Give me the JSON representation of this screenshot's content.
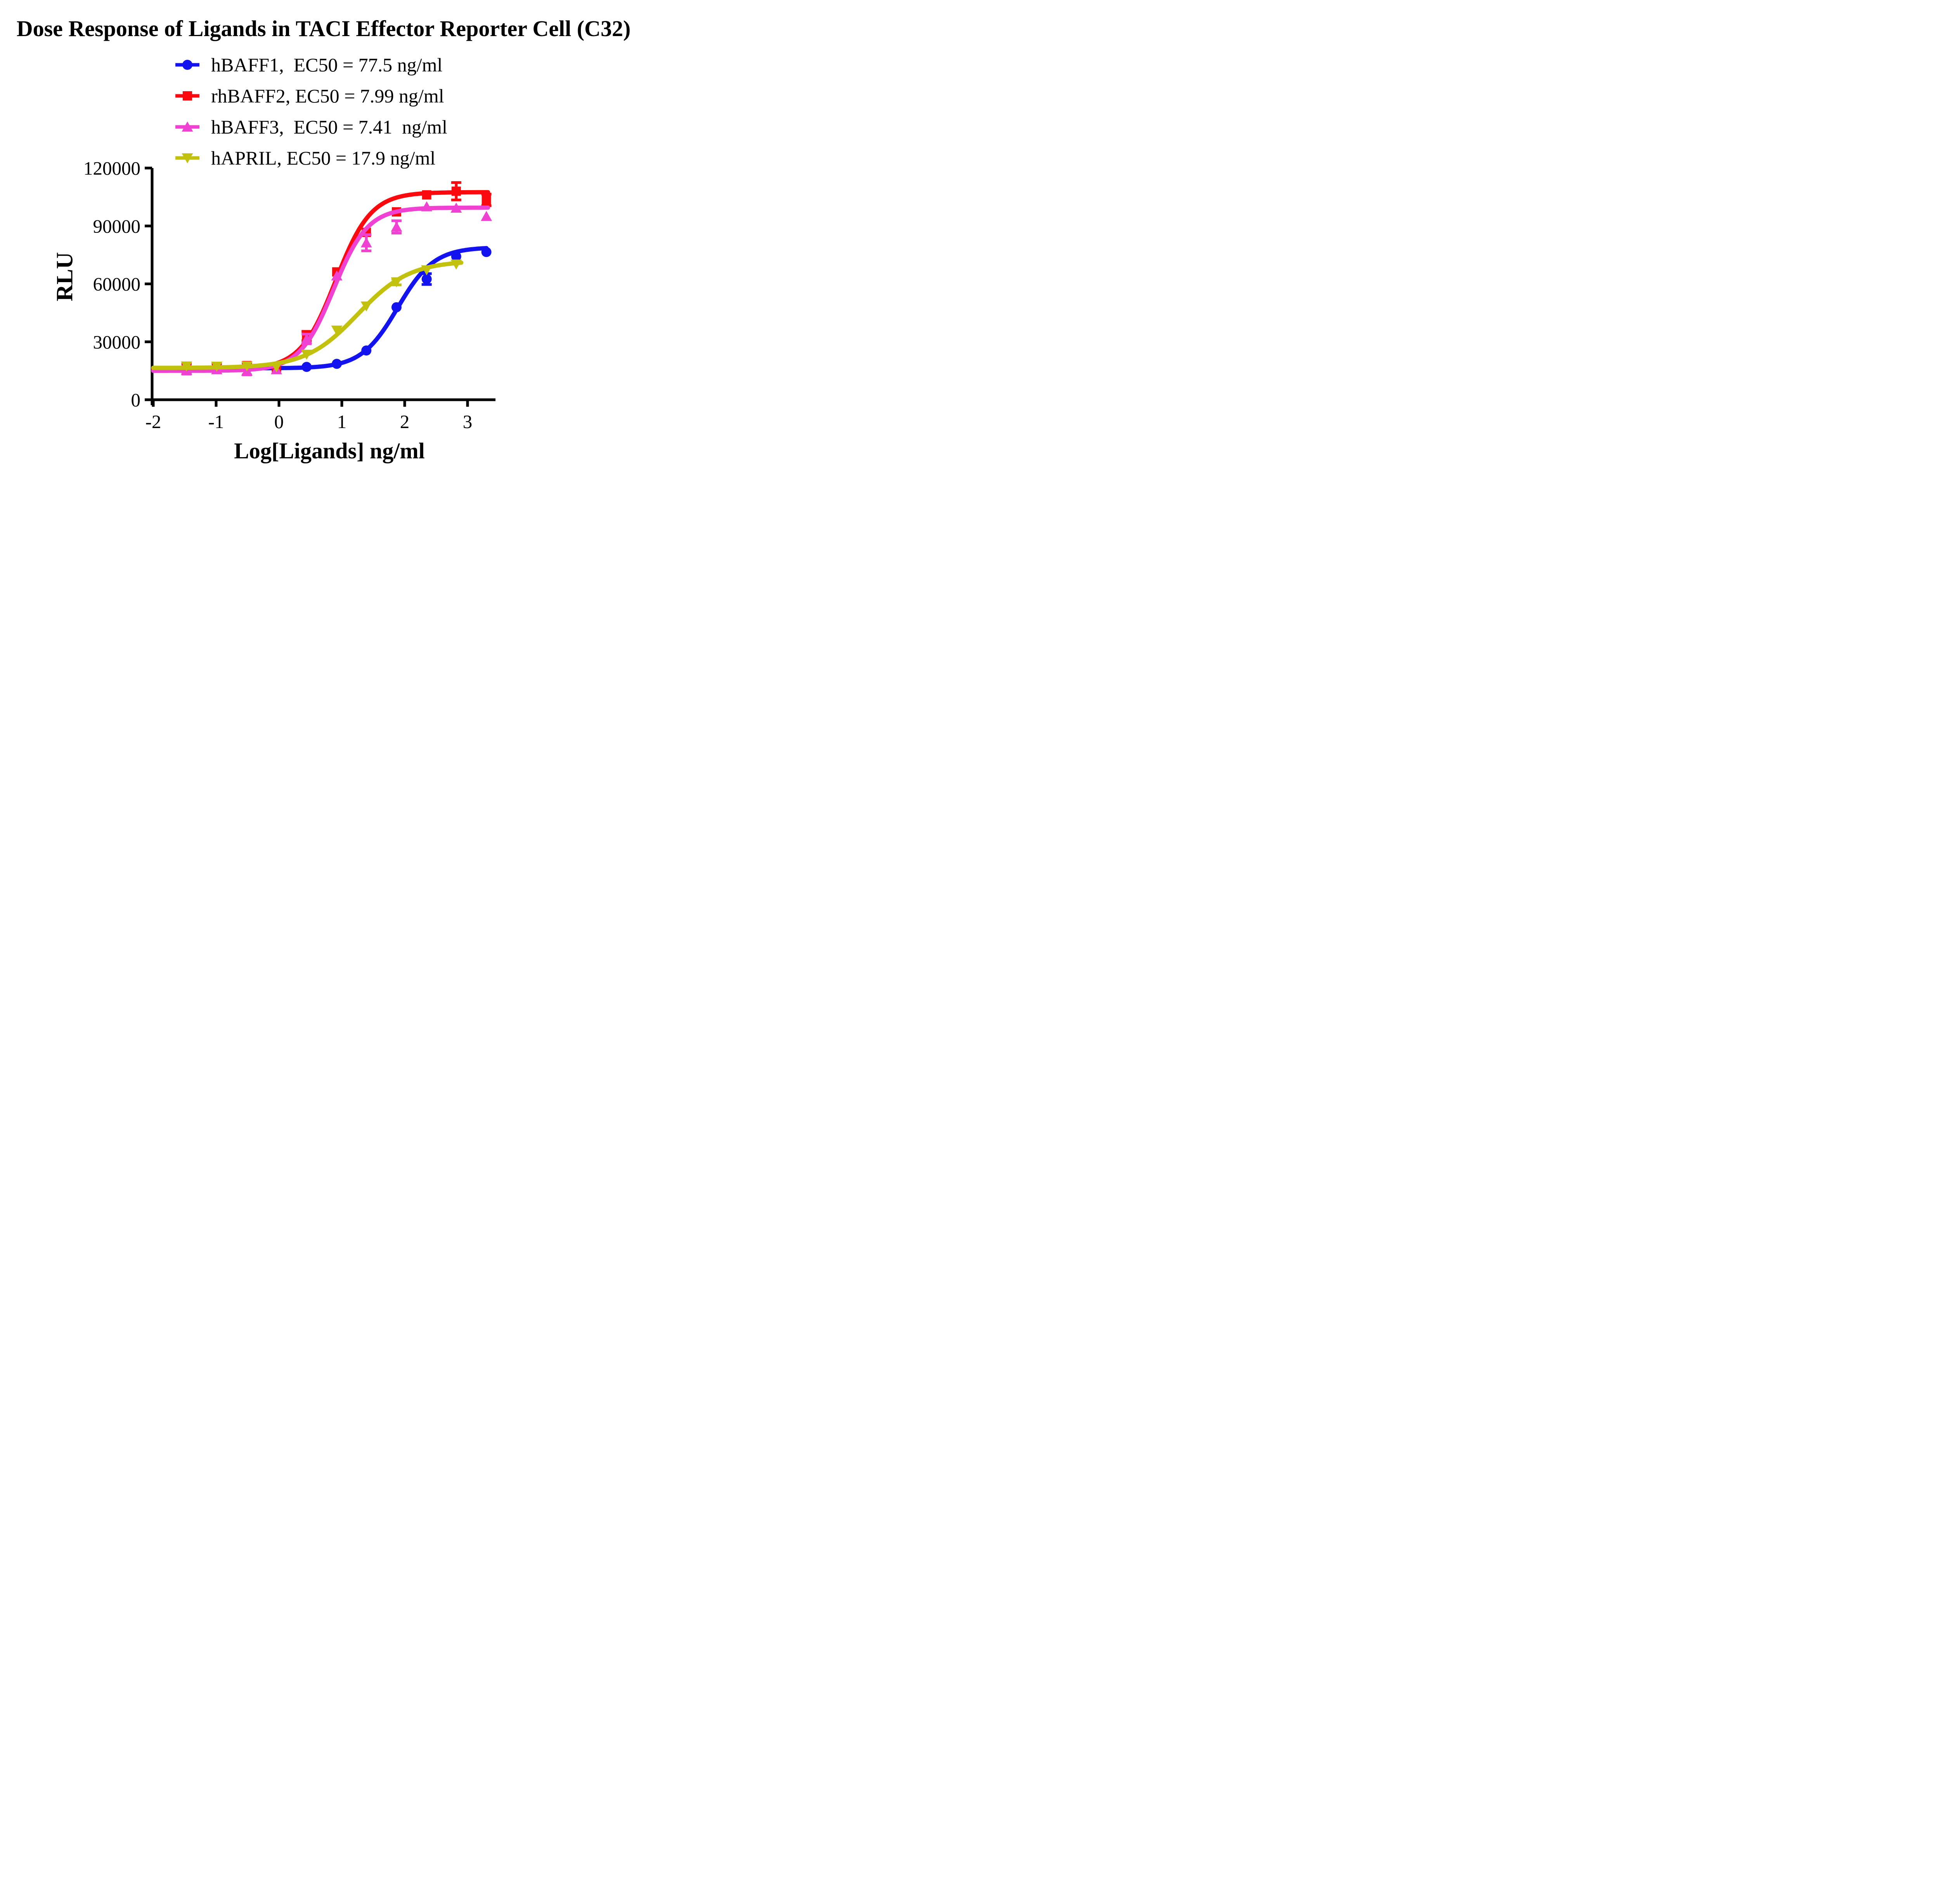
{
  "title": "Dose Response of Ligands in TACI Effector Reporter Cell (C32)",
  "chart_data": {
    "type": "line",
    "subtype": "dose-response-4pl-fit-with-points",
    "title": "Dose Response of Ligands in TACI Effector Reporter Cell (C32)",
    "xlabel": "Log[Ligands] ng/ml",
    "ylabel": "RLU",
    "xlim": [
      -2,
      3.46
    ],
    "ylim": [
      0,
      120000
    ],
    "x_ticks": [
      -2,
      -1,
      0,
      1,
      2,
      3
    ],
    "y_ticks": [
      0,
      30000,
      60000,
      90000,
      120000
    ],
    "grid": false,
    "legend_position": "top-center",
    "axis_color": "#000000",
    "series": [
      {
        "name": "hBAFF1",
        "legend": "hBAFF1,  EC50 = 77.5 ng/ml",
        "ec50_ng_ml": 77.5,
        "color": "#1313F0",
        "marker": "circle",
        "x": [
          -1.47,
          -0.99,
          -0.51,
          -0.04,
          0.44,
          0.92,
          1.39,
          1.87,
          2.35,
          2.82,
          3.3
        ],
        "y": [
          16600,
          16400,
          16200,
          15900,
          17000,
          18600,
          25500,
          47900,
          62500,
          74200,
          76500
        ],
        "yerr": [
          0,
          0,
          0,
          0,
          0,
          0,
          0,
          0,
          2800,
          0,
          0
        ],
        "fit": {
          "bottom": 16300,
          "top": 79000,
          "logec50": 1.889,
          "hill": 1.5,
          "xstart": -2,
          "xend": 3.3
        }
      },
      {
        "name": "rhBAFF2",
        "legend": "rhBAFF2, EC50 = 7.99 ng/ml",
        "ec50_ng_ml": 7.99,
        "color": "#FA0A0F",
        "marker": "square",
        "x": [
          -1.47,
          -0.99,
          -0.51,
          -0.04,
          0.44,
          0.92,
          1.39,
          1.87,
          2.35,
          2.82,
          3.3
        ],
        "y": [
          17000,
          16900,
          17700,
          16300,
          33000,
          66200,
          86700,
          97300,
          106100,
          108000,
          103500
        ],
        "yerr": [
          1500,
          1800,
          1500,
          0,
          2400,
          0,
          0,
          0,
          0,
          4500,
          3000
        ],
        "fit": {
          "bottom": 15800,
          "top": 107500,
          "logec50": 0.9025,
          "hill": 1.55,
          "xstart": -2,
          "xend": 3.34
        }
      },
      {
        "name": "hBAFF3",
        "legend": "hBAFF3,  EC50 = 7.41  ng/ml",
        "ec50_ng_ml": 7.41,
        "color": "#F042D2",
        "marker": "triangle-up",
        "x": [
          -1.47,
          -0.99,
          -0.51,
          -0.04,
          0.44,
          0.92,
          1.39,
          1.87,
          2.35,
          2.82,
          3.3
        ],
        "y": [
          15300,
          15600,
          14900,
          15600,
          31500,
          64200,
          81300,
          89500,
          100000,
          99300,
          95000
        ],
        "yerr": [
          2000,
          0,
          2000,
          0,
          2500,
          0,
          4200,
          3200,
          0,
          0,
          0
        ],
        "fit": {
          "bottom": 15000,
          "top": 99500,
          "logec50": 0.8698,
          "hill": 1.6,
          "xstart": -2,
          "xend": 3.33
        }
      },
      {
        "name": "hAPRIL",
        "legend": "hAPRIL, EC50 = 17.9 ng/ml",
        "ec50_ng_ml": 17.9,
        "color": "#C2C20E",
        "marker": "triangle-down",
        "x": [
          -1.47,
          -0.99,
          -0.51,
          -0.04,
          0.44,
          0.92,
          1.39,
          1.87,
          2.35,
          2.82
        ],
        "y": [
          17400,
          17300,
          17500,
          17000,
          23500,
          36000,
          48500,
          61000,
          67200,
          70200
        ],
        "yerr": [
          0,
          0,
          0,
          0,
          0,
          0,
          0,
          1500,
          0,
          0
        ],
        "fit": {
          "bottom": 16500,
          "top": 72000,
          "logec50": 1.2529,
          "hill": 1.05,
          "xstart": -2,
          "xend": 2.92
        }
      }
    ]
  }
}
